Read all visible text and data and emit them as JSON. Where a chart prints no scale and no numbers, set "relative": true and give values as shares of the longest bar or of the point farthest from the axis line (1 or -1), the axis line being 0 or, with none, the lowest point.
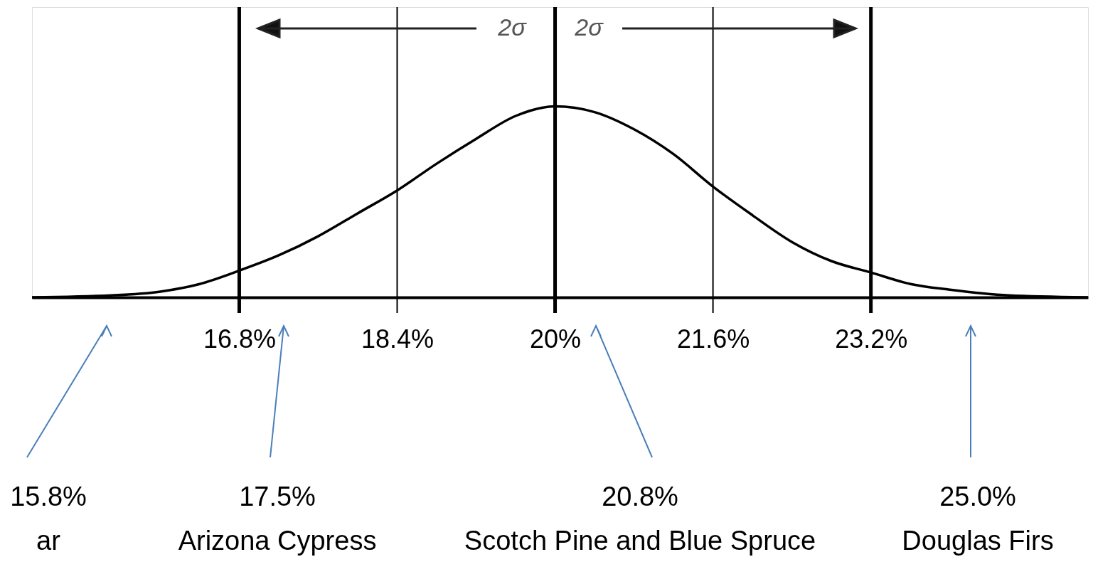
{
  "chart_data": {
    "type": "line",
    "relative": true,
    "x": [
      14.7,
      15.5,
      16.0,
      16.4,
      16.8,
      17.2,
      17.6,
      18.0,
      18.4,
      18.8,
      19.2,
      19.6,
      20.0,
      20.4,
      20.8,
      21.2,
      21.6,
      22.0,
      22.4,
      22.8,
      23.2,
      23.6,
      24.0,
      24.6,
      25.4
    ],
    "series": [
      {
        "color": "#000000",
        "values": [
          0,
          0.01,
          0.03,
          0.07,
          0.14,
          0.22,
          0.32,
          0.44,
          0.56,
          0.7,
          0.83,
          0.95,
          1.0,
          0.97,
          0.88,
          0.75,
          0.58,
          0.43,
          0.29,
          0.19,
          0.13,
          0.07,
          0.04,
          0.01,
          0
        ]
      }
    ],
    "xlim": [
      14.7,
      25.4
    ],
    "xticks": [
      {
        "value": 16.8,
        "label": "16.8%"
      },
      {
        "value": 18.4,
        "label": "18.4%"
      },
      {
        "value": 20,
        "label": "20%"
      },
      {
        "value": 21.6,
        "label": "21.6%"
      },
      {
        "value": 23.2,
        "label": "23.2%"
      }
    ],
    "ref_lines": [
      {
        "axis": "x",
        "value": 16.8,
        "color": "#000000"
      },
      {
        "axis": "x",
        "value": 18.4,
        "color": "#000000"
      },
      {
        "axis": "x",
        "value": 20,
        "color": "#000000"
      },
      {
        "axis": "x",
        "value": 21.6,
        "color": "#000000"
      },
      {
        "axis": "x",
        "value": 23.2,
        "color": "#000000"
      }
    ],
    "annotations": [
      "2σ",
      "2σ",
      "15.8%\nar",
      "17.5%\nArizona Cypress",
      "20.8%\nScotch Pine and Blue Spruce",
      "25.0%\nDouglas Firs"
    ],
    "grid": false,
    "marker": "none",
    "line_style": "solid"
  }
}
